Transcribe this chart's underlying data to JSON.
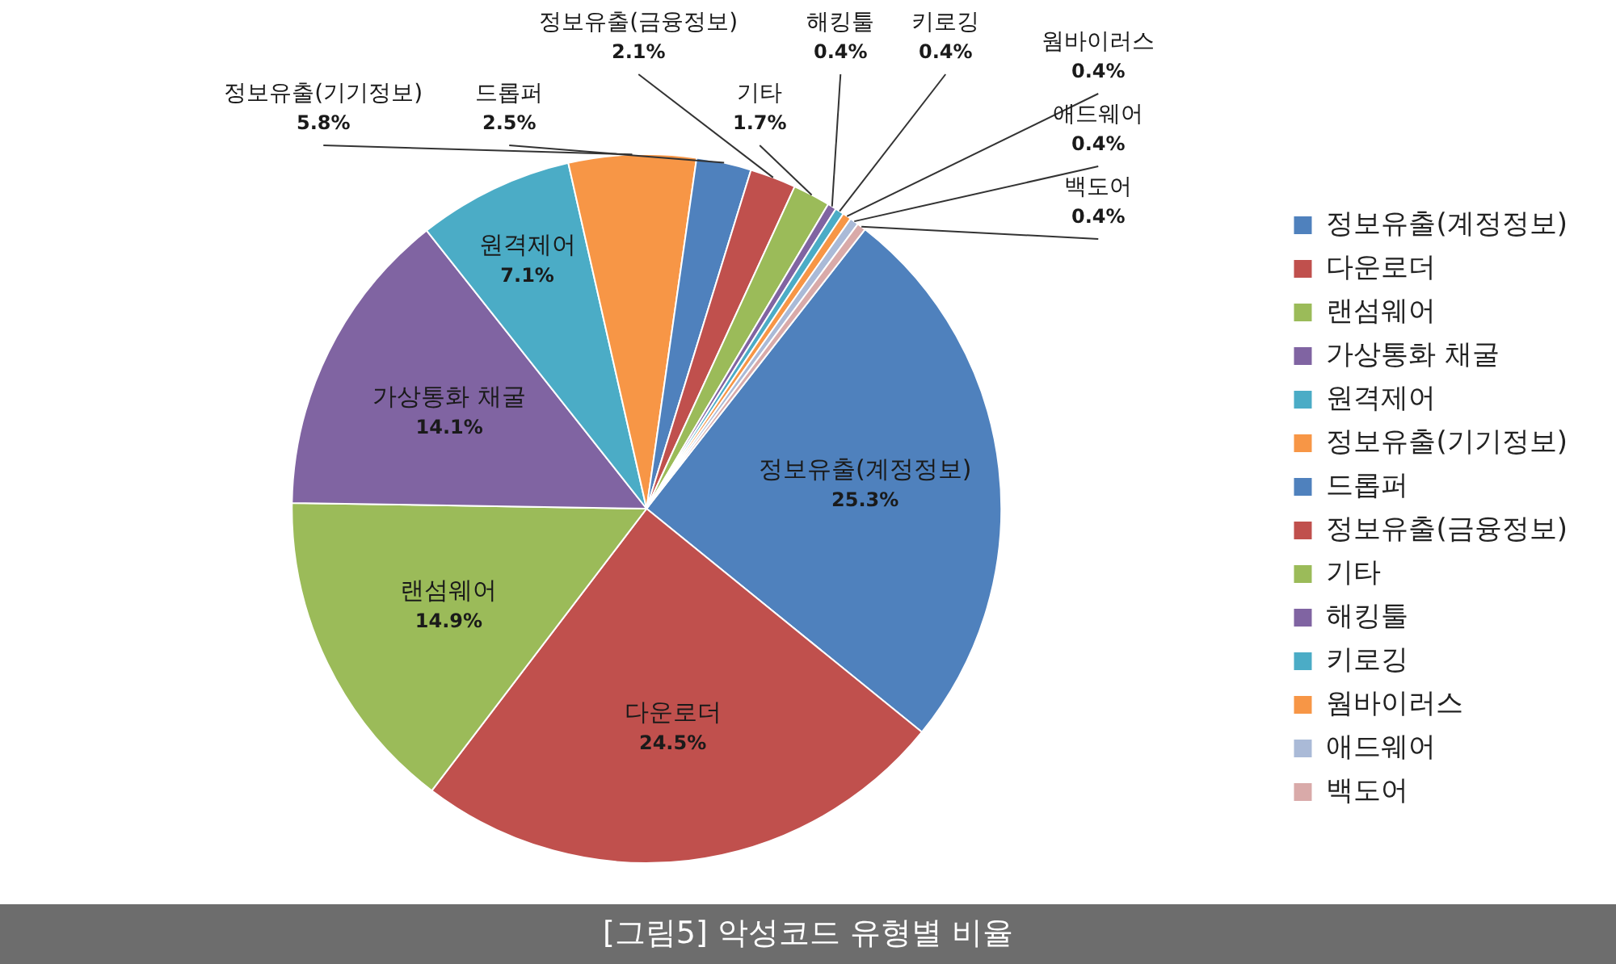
{
  "chart_data": {
    "type": "pie",
    "categories": [
      "정보유출(계정정보)",
      "다운로더",
      "랜섬웨어",
      "가상통화 채굴",
      "원격제어",
      "정보유출(기기정보)",
      "드롭퍼",
      "정보유출(금융정보)",
      "기타",
      "해킹툴",
      "키로깅",
      "웜바이러스",
      "애드웨어",
      "백도어"
    ],
    "values": [
      25.3,
      24.5,
      14.9,
      14.1,
      7.1,
      5.8,
      2.5,
      2.1,
      1.7,
      0.4,
      0.4,
      0.4,
      0.4,
      0.4
    ],
    "value_labels": [
      "25.3%",
      "24.5%",
      "14.9%",
      "14.1%",
      "7.1%",
      "5.8%",
      "2.5%",
      "2.1%",
      "1.7%",
      "0.4%",
      "0.4%",
      "0.4%",
      "0.4%",
      "0.4%"
    ],
    "colors": [
      "#4f81bd",
      "#c0504d",
      "#9bbb59",
      "#8064a2",
      "#4bacc6",
      "#f79646",
      "#4f81bd",
      "#c0504d",
      "#9bbb59",
      "#8064a2",
      "#4bacc6",
      "#f79646",
      "#aabad7",
      "#d9aaa9"
    ],
    "legend": "right",
    "annotations": [
      "[그림5] 악성코드 유형별 비율"
    ]
  }
}
